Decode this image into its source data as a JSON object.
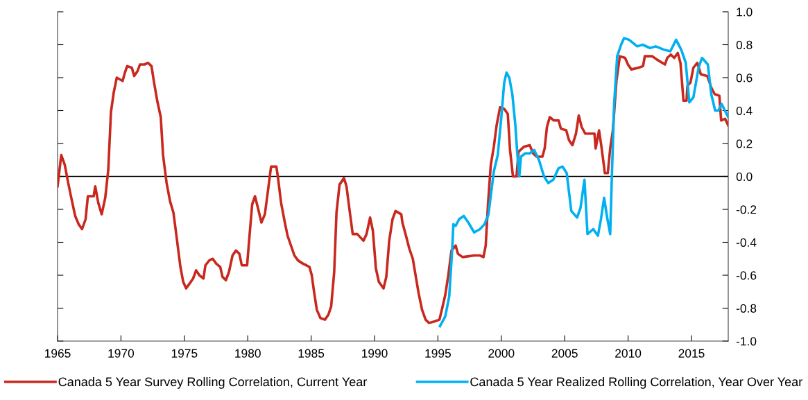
{
  "chart_data": {
    "type": "line",
    "xlim": [
      1965,
      2017.9
    ],
    "xticks": [
      1965,
      1970,
      1975,
      1980,
      1985,
      1990,
      1995,
      2000,
      2005,
      2010,
      2015
    ],
    "ylim": [
      -1.0,
      1.0
    ],
    "yticks": [
      {
        "value": -1.0,
        "label": "-1.0"
      },
      {
        "value": -0.8,
        "label": "-0.8"
      },
      {
        "value": -0.6,
        "label": "-0.6"
      },
      {
        "value": -0.4,
        "label": "-0.4"
      },
      {
        "value": -0.2,
        "label": "-0.2"
      },
      {
        "value": 0,
        "label": "0.0"
      },
      {
        "value": 0.2,
        "label": "0.2"
      },
      {
        "value": 0.4,
        "label": "0.4"
      },
      {
        "value": 0.6,
        "label": "0.6"
      },
      {
        "value": 0.8,
        "label": "0.8"
      },
      {
        "value": 1.0,
        "label": "1.0"
      }
    ],
    "grid": false,
    "legend": "bottom",
    "ref_lines": [
      {
        "axis": "y",
        "value": 0,
        "color": "#000000"
      }
    ],
    "series": [
      {
        "name": "Canada 5 Year Survey Rolling Correlation, Current Year",
        "color": "#c8281e",
        "x": [
          1965.0,
          1965.29,
          1965.57,
          1965.84,
          1966.11,
          1966.39,
          1966.66,
          1966.93,
          1967.21,
          1967.39,
          1967.85,
          1967.97,
          1968.21,
          1968.48,
          1968.76,
          1969.0,
          1969.21,
          1969.43,
          1969.67,
          1970.13,
          1970.31,
          1970.49,
          1970.86,
          1971.04,
          1971.31,
          1971.5,
          1971.86,
          1972.13,
          1972.41,
          1972.59,
          1972.86,
          1973.14,
          1973.32,
          1973.6,
          1973.87,
          1974.14,
          1974.36,
          1974.69,
          1974.91,
          1975.14,
          1975.42,
          1975.69,
          1975.93,
          1976.18,
          1976.51,
          1976.66,
          1976.97,
          1977.24,
          1977.52,
          1977.83,
          1978.01,
          1978.28,
          1978.52,
          1978.8,
          1979.07,
          1979.34,
          1979.53,
          1979.95,
          1980.13,
          1980.35,
          1980.57,
          1980.8,
          1981.08,
          1981.35,
          1981.59,
          1981.84,
          1982.26,
          1982.39,
          1982.63,
          1982.9,
          1983.14,
          1983.41,
          1983.68,
          1983.96,
          1984.36,
          1984.63,
          1984.87,
          1985.05,
          1985.23,
          1985.45,
          1985.73,
          1986.09,
          1986.36,
          1986.58,
          1986.82,
          1987.0,
          1987.24,
          1987.59,
          1987.79,
          1988.04,
          1988.28,
          1988.64,
          1988.88,
          1989.13,
          1989.37,
          1989.65,
          1989.87,
          1990.11,
          1990.34,
          1990.71,
          1990.93,
          1991.16,
          1991.42,
          1991.66,
          1992.11,
          1992.2,
          1992.48,
          1992.75,
          1993.02,
          1993.26,
          1993.48,
          1993.75,
          1994.03,
          1994.3,
          1994.76,
          1995.12,
          1995.34,
          1995.58,
          1995.82,
          1996.07,
          1996.4,
          1996.58,
          1996.95,
          1997.86,
          1998.32,
          1998.59,
          1998.77,
          1998.95,
          1999.17,
          1999.41,
          1999.63,
          1999.9,
          2000.23,
          2000.51,
          2000.69,
          2000.92,
          2001.2,
          2001.36,
          2001.78,
          2002.24,
          2002.51,
          2002.78,
          2003.24,
          2003.42,
          2003.6,
          2003.82,
          2004.15,
          2004.52,
          2004.7,
          2005.12,
          2005.34,
          2005.61,
          2005.89,
          2006.11,
          2006.34,
          2006.62,
          2007.35,
          2007.44,
          2007.71,
          2007.9,
          2008.17,
          2008.4,
          2008.59,
          2008.8,
          2009.08,
          2009.35,
          2009.76,
          2009.99,
          2010.26,
          2010.81,
          2011.18,
          2011.32,
          2011.91,
          2012.27,
          2012.91,
          2013.09,
          2013.37,
          2013.64,
          2013.92,
          2014.13,
          2014.37,
          2014.61,
          2014.68,
          2014.92,
          2015.15,
          2015.46,
          2015.74,
          2016.25,
          2016.56,
          2016.83,
          2017.2,
          2017.34,
          2017.65,
          2017.9
        ],
        "values": [
          -0.06,
          0.13,
          0.07,
          -0.04,
          -0.14,
          -0.24,
          -0.29,
          -0.32,
          -0.26,
          -0.12,
          -0.12,
          -0.06,
          -0.16,
          -0.23,
          -0.13,
          0.04,
          0.39,
          0.51,
          0.6,
          0.58,
          0.63,
          0.67,
          0.66,
          0.61,
          0.64,
          0.68,
          0.68,
          0.69,
          0.67,
          0.58,
          0.46,
          0.36,
          0.13,
          -0.04,
          -0.15,
          -0.22,
          -0.35,
          -0.55,
          -0.64,
          -0.68,
          -0.65,
          -0.62,
          -0.57,
          -0.6,
          -0.62,
          -0.54,
          -0.51,
          -0.5,
          -0.53,
          -0.55,
          -0.61,
          -0.63,
          -0.58,
          -0.48,
          -0.45,
          -0.47,
          -0.54,
          -0.54,
          -0.37,
          -0.17,
          -0.12,
          -0.19,
          -0.28,
          -0.23,
          -0.09,
          0.06,
          0.06,
          -0.01,
          -0.16,
          -0.27,
          -0.36,
          -0.42,
          -0.48,
          -0.51,
          -0.53,
          -0.54,
          -0.55,
          -0.6,
          -0.7,
          -0.81,
          -0.86,
          -0.87,
          -0.84,
          -0.79,
          -0.58,
          -0.22,
          -0.05,
          -0.01,
          -0.06,
          -0.21,
          -0.35,
          -0.35,
          -0.37,
          -0.39,
          -0.35,
          -0.25,
          -0.33,
          -0.56,
          -0.64,
          -0.68,
          -0.61,
          -0.39,
          -0.26,
          -0.21,
          -0.23,
          -0.28,
          -0.36,
          -0.44,
          -0.5,
          -0.61,
          -0.71,
          -0.81,
          -0.87,
          -0.89,
          -0.88,
          -0.87,
          -0.8,
          -0.72,
          -0.6,
          -0.45,
          -0.42,
          -0.47,
          -0.49,
          -0.48,
          -0.48,
          -0.49,
          -0.42,
          -0.17,
          0.07,
          0.18,
          0.31,
          0.42,
          0.41,
          0.38,
          0.16,
          0.0,
          0.0,
          0.15,
          0.18,
          0.19,
          0.14,
          0.12,
          0.12,
          0.17,
          0.3,
          0.36,
          0.34,
          0.34,
          0.29,
          0.28,
          0.22,
          0.19,
          0.26,
          0.37,
          0.3,
          0.26,
          0.26,
          0.17,
          0.28,
          0.18,
          0.02,
          0.02,
          0.17,
          0.28,
          0.58,
          0.73,
          0.72,
          0.68,
          0.65,
          0.66,
          0.67,
          0.73,
          0.73,
          0.71,
          0.68,
          0.72,
          0.74,
          0.72,
          0.75,
          0.69,
          0.46,
          0.46,
          0.55,
          0.57,
          0.66,
          0.69,
          0.62,
          0.61,
          0.54,
          0.5,
          0.49,
          0.34,
          0.35,
          0.31
        ]
      },
      {
        "name": "Canada 5 Year Realized Rolling Correlation, Year Over Year",
        "color": "#00b0f0",
        "x": [
          1995.16,
          1995.58,
          1995.89,
          1996.13,
          1996.22,
          1996.4,
          1996.67,
          1997.04,
          1997.4,
          1997.86,
          1998.32,
          1998.68,
          1998.99,
          1999.23,
          1999.41,
          1999.72,
          1999.99,
          2000.23,
          2000.41,
          2000.63,
          2000.87,
          2001.11,
          2001.27,
          2001.42,
          2001.55,
          2001.88,
          2002.24,
          2002.6,
          2002.97,
          2003.37,
          2003.7,
          2004.1,
          2004.52,
          2004.83,
          2005.16,
          2005.52,
          2005.98,
          2006.25,
          2006.56,
          2006.8,
          2007.25,
          2007.62,
          2007.86,
          2008.11,
          2008.35,
          2008.59,
          2008.72,
          2008.9,
          2009.14,
          2009.45,
          2009.68,
          2010.08,
          2010.72,
          2011.14,
          2011.73,
          2012.18,
          2012.82,
          2013.33,
          2013.79,
          2014.19,
          2014.55,
          2014.83,
          2015.15,
          2015.56,
          2015.83,
          2016.29,
          2016.56,
          2016.87,
          2017.11,
          2017.38,
          2017.9
        ],
        "values": [
          -0.91,
          -0.85,
          -0.73,
          -0.44,
          -0.29,
          -0.3,
          -0.26,
          -0.24,
          -0.28,
          -0.34,
          -0.32,
          -0.29,
          -0.23,
          -0.08,
          0.03,
          0.13,
          0.35,
          0.57,
          0.63,
          0.6,
          0.5,
          0.31,
          0.13,
          0.0,
          0.12,
          0.14,
          0.14,
          0.16,
          0.1,
          0.0,
          -0.04,
          -0.02,
          0.05,
          0.06,
          0.02,
          -0.21,
          -0.25,
          -0.19,
          -0.02,
          -0.35,
          -0.32,
          -0.36,
          -0.26,
          -0.13,
          -0.25,
          -0.35,
          0.0,
          0.44,
          0.73,
          0.8,
          0.84,
          0.83,
          0.79,
          0.8,
          0.78,
          0.79,
          0.77,
          0.76,
          0.83,
          0.77,
          0.69,
          0.45,
          0.48,
          0.66,
          0.72,
          0.68,
          0.5,
          0.4,
          0.4,
          0.44,
          0.36
        ]
      }
    ]
  }
}
